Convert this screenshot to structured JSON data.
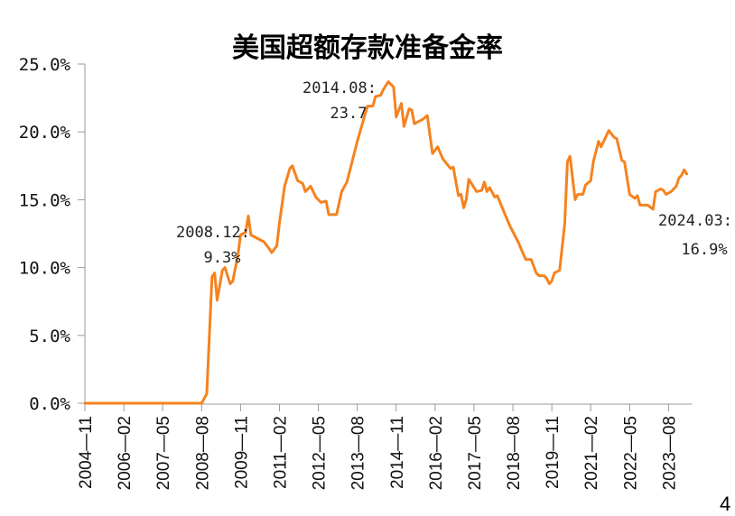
{
  "chart_data": {
    "type": "line",
    "title": "美国超额存款准备金率",
    "xlabel": "",
    "ylabel": "",
    "ylim": [
      0,
      25
    ],
    "y_ticks": [
      "0.0%",
      "5.0%",
      "10.0%",
      "15.0%",
      "20.0%",
      "25.0%"
    ],
    "x_ticks": [
      "2004-11",
      "2006-02",
      "2007-05",
      "2008-08",
      "2009-11",
      "2011-02",
      "2012-05",
      "2013-08",
      "2014-11",
      "2016-02",
      "2017-05",
      "2018-08",
      "2019-11",
      "2021-02",
      "2022-05",
      "2023-08"
    ],
    "grid": false,
    "legend": null,
    "series": [
      {
        "name": "美国超额存款准备金率",
        "color": "#F5821F",
        "unit": "%",
        "x": [
          "2004-11",
          "2008-08",
          "2008-10",
          "2008-12",
          "2009-01",
          "2009-02",
          "2009-04",
          "2009-05",
          "2009-07",
          "2009-08",
          "2009-10",
          "2009-11",
          "2010-01",
          "2010-02",
          "2010-03",
          "2010-06",
          "2010-08",
          "2010-10",
          "2010-11",
          "2011-01",
          "2011-02",
          "2011-04",
          "2011-06",
          "2011-07",
          "2011-09",
          "2011-11",
          "2011-12",
          "2012-02",
          "2012-04",
          "2012-06",
          "2012-08",
          "2012-09",
          "2012-12",
          "2013-02",
          "2013-04",
          "2013-08",
          "2013-11",
          "2013-12",
          "2014-02",
          "2014-03",
          "2014-05",
          "2014-06",
          "2014-08",
          "2014-10",
          "2014-11",
          "2015-01",
          "2015-02",
          "2015-04",
          "2015-05",
          "2015-06",
          "2015-09",
          "2015-11",
          "2016-01",
          "2016-03",
          "2016-05",
          "2016-08",
          "2016-09",
          "2016-11",
          "2016-12",
          "2017-01",
          "2017-02",
          "2017-03",
          "2017-05",
          "2017-06",
          "2017-08",
          "2017-09",
          "2017-10",
          "2017-11",
          "2018-01",
          "2018-02",
          "2018-05",
          "2018-07",
          "2018-10",
          "2018-12",
          "2019-01",
          "2019-03",
          "2019-05",
          "2019-06",
          "2019-08",
          "2019-09",
          "2019-10",
          "2019-11",
          "2019-12",
          "2020-02",
          "2020-04",
          "2020-05",
          "2020-06",
          "2020-07",
          "2020-08",
          "2020-09",
          "2020-11",
          "2020-12",
          "2021-02",
          "2021-03",
          "2021-05",
          "2021-06",
          "2021-07",
          "2021-09",
          "2021-11",
          "2021-12",
          "2022-02",
          "2022-03",
          "2022-05",
          "2022-07",
          "2022-08",
          "2022-09",
          "2022-12",
          "2023-02",
          "2023-03",
          "2023-05",
          "2023-06",
          "2023-07",
          "2023-09",
          "2023-11",
          "2023-12",
          "2024-01",
          "2024-02",
          "2024-03"
        ],
        "idx": [
          0,
          45,
          47,
          49,
          50,
          51,
          53,
          54,
          56,
          57,
          59,
          60,
          62,
          63,
          64,
          67,
          69,
          71,
          72,
          74,
          75,
          77,
          79,
          80,
          82,
          84,
          85,
          87,
          89,
          91,
          93,
          94,
          97,
          99,
          101,
          105,
          108,
          109,
          111,
          112,
          114,
          115,
          117,
          119,
          120,
          122,
          123,
          125,
          126,
          127,
          130,
          132,
          134,
          136,
          138,
          141,
          142,
          144,
          145,
          146,
          147,
          148,
          150,
          151,
          153,
          154,
          155,
          156,
          158,
          159,
          162,
          164,
          167,
          169,
          170,
          172,
          174,
          175,
          177,
          178,
          179,
          180,
          181,
          183,
          185,
          186,
          187,
          188,
          189,
          190,
          192,
          193,
          195,
          196,
          198,
          199,
          200,
          202,
          204,
          205,
          207,
          208,
          210,
          212,
          213,
          214,
          217,
          219,
          220,
          222,
          223,
          224,
          226,
          228,
          229,
          230,
          231,
          232
        ],
        "values": [
          0.0,
          0.0,
          0.7,
          9.3,
          9.6,
          7.6,
          9.8,
          10.0,
          8.8,
          9.0,
          10.9,
          12.4,
          12.6,
          13.8,
          12.4,
          12.1,
          11.9,
          11.4,
          11.1,
          11.6,
          13.3,
          16.0,
          17.3,
          17.5,
          16.4,
          16.2,
          15.6,
          16.0,
          15.2,
          14.8,
          14.9,
          13.9,
          13.9,
          15.6,
          16.3,
          19.3,
          21.3,
          21.9,
          21.9,
          22.6,
          22.7,
          23.1,
          23.7,
          23.3,
          21.1,
          22.1,
          20.4,
          21.7,
          21.6,
          20.6,
          20.9,
          21.2,
          18.4,
          18.9,
          18.0,
          17.3,
          17.4,
          15.3,
          15.4,
          14.4,
          15.0,
          16.5,
          15.9,
          15.6,
          15.7,
          16.3,
          15.6,
          15.9,
          15.2,
          15.3,
          13.9,
          13.0,
          11.9,
          11.0,
          10.6,
          10.6,
          9.6,
          9.4,
          9.4,
          9.2,
          8.8,
          9.0,
          9.6,
          9.8,
          13.3,
          17.8,
          18.2,
          16.6,
          15.0,
          15.4,
          15.4,
          16.1,
          16.4,
          17.8,
          19.3,
          18.9,
          19.3,
          20.1,
          19.6,
          19.5,
          17.9,
          17.8,
          15.4,
          15.1,
          15.3,
          14.6,
          14.6,
          14.3,
          15.6,
          15.8,
          15.7,
          15.4,
          15.6,
          16.0,
          16.6,
          16.8,
          17.2,
          16.9
        ]
      }
    ],
    "annotations": [
      {
        "line1": "2008.12:",
        "line2": "9.3%",
        "x": 49,
        "y": 9.3
      },
      {
        "line1": "2014.08:",
        "line2": "23.7",
        "x": 117,
        "y": 23.7
      },
      {
        "line1": "2024.03:",
        "line2": "16.9%",
        "x": 232,
        "y": 16.9
      }
    ]
  },
  "page": {
    "corner_mark": "4"
  }
}
